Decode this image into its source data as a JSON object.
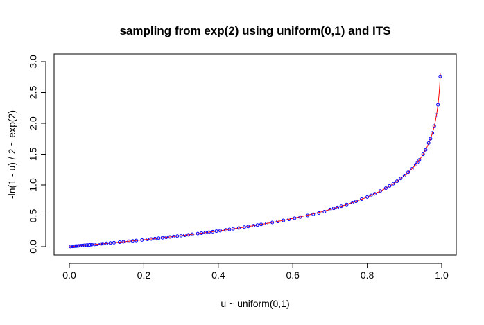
{
  "chart_data": {
    "type": "scatter",
    "title": "sampling from exp(2) using uniform(0,1) and ITS",
    "xlabel": "u ~ uniform(0,1)",
    "ylabel": "-ln(1 - u) / 2 ~ exp(2)",
    "xlim": [
      0.0,
      1.0
    ],
    "ylim": [
      0.0,
      3.1
    ],
    "x_ticks": [
      "0.0",
      "0.2",
      "0.4",
      "0.6",
      "0.8",
      "1.0"
    ],
    "y_ticks": [
      "0.0",
      "0.5",
      "1.0",
      "1.5",
      "2.0",
      "2.5",
      "3.0"
    ],
    "grid": false,
    "legend": "none",
    "point_color": "#0000ff",
    "curve_color": "#ff0000",
    "series": [
      {
        "x": [
          0.003,
          0.008,
          0.012,
          0.016,
          0.02,
          0.025,
          0.03,
          0.035,
          0.04,
          0.046,
          0.05,
          0.055,
          0.06,
          0.068,
          0.075,
          0.085,
          0.09,
          0.1,
          0.11,
          0.12,
          0.135,
          0.145,
          0.16,
          0.17,
          0.18,
          0.195,
          0.21,
          0.22,
          0.23,
          0.24,
          0.25,
          0.26,
          0.27,
          0.28,
          0.29,
          0.3,
          0.31,
          0.32,
          0.33,
          0.345,
          0.355,
          0.365,
          0.375,
          0.385,
          0.395,
          0.405,
          0.42,
          0.43,
          0.44,
          0.455,
          0.47,
          0.48,
          0.495,
          0.505,
          0.515,
          0.53,
          0.545,
          0.56,
          0.575,
          0.59,
          0.605,
          0.62,
          0.64,
          0.655,
          0.67,
          0.685,
          0.7,
          0.71,
          0.72,
          0.73,
          0.745,
          0.76,
          0.77,
          0.785,
          0.8,
          0.81,
          0.82,
          0.835,
          0.85,
          0.86,
          0.87,
          0.88,
          0.89,
          0.9,
          0.91,
          0.92,
          0.93,
          0.935,
          0.94,
          0.95,
          0.957,
          0.965,
          0.97,
          0.975,
          0.98,
          0.986,
          0.99,
          0.996
        ],
        "y": [
          0.0015,
          0.004,
          0.006,
          0.008,
          0.0101,
          0.0127,
          0.0152,
          0.0178,
          0.0204,
          0.0235,
          0.0256,
          0.0283,
          0.0309,
          0.0352,
          0.039,
          0.0444,
          0.0472,
          0.0527,
          0.0583,
          0.0639,
          0.0725,
          0.0784,
          0.0872,
          0.0932,
          0.0992,
          0.1085,
          0.1179,
          0.1242,
          0.1307,
          0.1372,
          0.1438,
          0.1506,
          0.1574,
          0.1643,
          0.1713,
          0.1783,
          0.1855,
          0.1928,
          0.2002,
          0.2116,
          0.2193,
          0.2272,
          0.2351,
          0.2432,
          0.2514,
          0.2598,
          0.2726,
          0.2813,
          0.2901,
          0.3037,
          0.3175,
          0.327,
          0.3415,
          0.3514,
          0.3615,
          0.3771,
          0.3931,
          0.4095,
          0.4264,
          0.4437,
          0.4616,
          0.4799,
          0.5054,
          0.5253,
          0.5457,
          0.5669,
          0.602,
          0.6204,
          0.6366,
          0.6547,
          0.6832,
          0.7135,
          0.7349,
          0.7694,
          0.8047,
          0.8304,
          0.8574,
          0.9015,
          0.9486,
          0.9842,
          1.0216,
          1.0601,
          1.1036,
          1.1513,
          1.2056,
          1.2629,
          1.3296,
          1.3677,
          1.4067,
          1.4979,
          1.5705,
          1.6809,
          1.7512,
          1.8446,
          1.9555,
          2.1347,
          2.3026,
          2.7612
        ]
      }
    ]
  }
}
